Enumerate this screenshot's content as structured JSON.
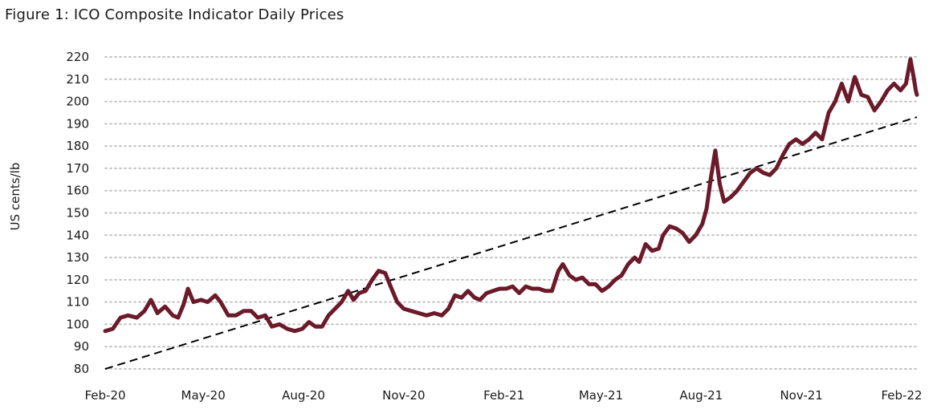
{
  "chart_data": {
    "type": "line",
    "title": "Figure 1: ICO Composite Indicator Daily Prices",
    "xlabel": "",
    "ylabel": "US cents/lb",
    "ylim": [
      80,
      220
    ],
    "y_ticks": [
      220,
      210,
      200,
      190,
      180,
      170,
      160,
      150,
      140,
      130,
      120,
      110,
      100,
      90,
      80
    ],
    "xlim": [
      "2020-02-01",
      "2022-02-15"
    ],
    "x_ticks": [
      {
        "label": "Feb-20",
        "date": "2020-02-01"
      },
      {
        "label": "May-20",
        "date": "2020-05-01"
      },
      {
        "label": "Aug-20",
        "date": "2020-08-01"
      },
      {
        "label": "Nov-20",
        "date": "2020-11-01"
      },
      {
        "label": "Feb-21",
        "date": "2021-02-01"
      },
      {
        "label": "May-21",
        "date": "2021-05-01"
      },
      {
        "label": "Aug-21",
        "date": "2021-08-01"
      },
      {
        "label": "Nov-21",
        "date": "2021-11-01"
      },
      {
        "label": "Feb-22",
        "date": "2022-02-01"
      }
    ],
    "grid": "horizontal-dotted",
    "legend": "none",
    "series": [
      {
        "color": "#6b1a2a",
        "points": [
          [
            "2020-02-01",
            97
          ],
          [
            "2020-02-08",
            98
          ],
          [
            "2020-02-15",
            103
          ],
          [
            "2020-02-22",
            104
          ],
          [
            "2020-03-01",
            103
          ],
          [
            "2020-03-08",
            106
          ],
          [
            "2020-03-14",
            111
          ],
          [
            "2020-03-20",
            105
          ],
          [
            "2020-03-27",
            108
          ],
          [
            "2020-04-03",
            104
          ],
          [
            "2020-04-08",
            103
          ],
          [
            "2020-04-13",
            109
          ],
          [
            "2020-04-17",
            116
          ],
          [
            "2020-04-22",
            110
          ],
          [
            "2020-04-29",
            111
          ],
          [
            "2020-05-05",
            110
          ],
          [
            "2020-05-12",
            113
          ],
          [
            "2020-05-17",
            110
          ],
          [
            "2020-05-24",
            104
          ],
          [
            "2020-05-31",
            104
          ],
          [
            "2020-06-07",
            106
          ],
          [
            "2020-06-14",
            106
          ],
          [
            "2020-06-20",
            103
          ],
          [
            "2020-06-27",
            104
          ],
          [
            "2020-07-03",
            99
          ],
          [
            "2020-07-10",
            100
          ],
          [
            "2020-07-17",
            98
          ],
          [
            "2020-07-24",
            97
          ],
          [
            "2020-07-31",
            98
          ],
          [
            "2020-08-06",
            101
          ],
          [
            "2020-08-12",
            99
          ],
          [
            "2020-08-18",
            99
          ],
          [
            "2020-08-24",
            104
          ],
          [
            "2020-08-30",
            107
          ],
          [
            "2020-09-05",
            110
          ],
          [
            "2020-09-11",
            115
          ],
          [
            "2020-09-16",
            111
          ],
          [
            "2020-09-21",
            114
          ],
          [
            "2020-09-27",
            115
          ],
          [
            "2020-10-03",
            120
          ],
          [
            "2020-10-09",
            124
          ],
          [
            "2020-10-15",
            123
          ],
          [
            "2020-10-20",
            117
          ],
          [
            "2020-10-26",
            110
          ],
          [
            "2020-11-01",
            107
          ],
          [
            "2020-11-08",
            106
          ],
          [
            "2020-11-15",
            105
          ],
          [
            "2020-11-22",
            104
          ],
          [
            "2020-11-29",
            105
          ],
          [
            "2020-12-06",
            104
          ],
          [
            "2020-12-12",
            107
          ],
          [
            "2020-12-18",
            113
          ],
          [
            "2020-12-24",
            112
          ],
          [
            "2020-12-30",
            115
          ],
          [
            "2021-01-05",
            112
          ],
          [
            "2021-01-10",
            111
          ],
          [
            "2021-01-16",
            114
          ],
          [
            "2021-01-22",
            115
          ],
          [
            "2021-01-28",
            116
          ],
          [
            "2021-02-03",
            116
          ],
          [
            "2021-02-09",
            117
          ],
          [
            "2021-02-15",
            114
          ],
          [
            "2021-02-21",
            117
          ],
          [
            "2021-02-27",
            116
          ],
          [
            "2021-03-05",
            116
          ],
          [
            "2021-03-11",
            115
          ],
          [
            "2021-03-17",
            115
          ],
          [
            "2021-03-23",
            124
          ],
          [
            "2021-03-27",
            127
          ],
          [
            "2021-04-02",
            122
          ],
          [
            "2021-04-08",
            120
          ],
          [
            "2021-04-14",
            121
          ],
          [
            "2021-04-20",
            118
          ],
          [
            "2021-04-26",
            118
          ],
          [
            "2021-05-02",
            115
          ],
          [
            "2021-05-08",
            117
          ],
          [
            "2021-05-14",
            120
          ],
          [
            "2021-05-20",
            122
          ],
          [
            "2021-05-26",
            127
          ],
          [
            "2021-06-01",
            130
          ],
          [
            "2021-06-05",
            128
          ],
          [
            "2021-06-11",
            136
          ],
          [
            "2021-06-17",
            133
          ],
          [
            "2021-06-23",
            134
          ],
          [
            "2021-06-27",
            140
          ],
          [
            "2021-07-03",
            144
          ],
          [
            "2021-07-09",
            143
          ],
          [
            "2021-07-15",
            141
          ],
          [
            "2021-07-21",
            137
          ],
          [
            "2021-07-27",
            140
          ],
          [
            "2021-08-02",
            145
          ],
          [
            "2021-08-06",
            152
          ],
          [
            "2021-08-10",
            166
          ],
          [
            "2021-08-14",
            178
          ],
          [
            "2021-08-18",
            163
          ],
          [
            "2021-08-22",
            155
          ],
          [
            "2021-08-28",
            157
          ],
          [
            "2021-09-03",
            160
          ],
          [
            "2021-09-09",
            164
          ],
          [
            "2021-09-15",
            168
          ],
          [
            "2021-09-21",
            170
          ],
          [
            "2021-09-27",
            168
          ],
          [
            "2021-10-03",
            167
          ],
          [
            "2021-10-09",
            170
          ],
          [
            "2021-10-15",
            176
          ],
          [
            "2021-10-21",
            181
          ],
          [
            "2021-10-27",
            183
          ],
          [
            "2021-11-02",
            181
          ],
          [
            "2021-11-08",
            183
          ],
          [
            "2021-11-14",
            186
          ],
          [
            "2021-11-20",
            183
          ],
          [
            "2021-11-26",
            195
          ],
          [
            "2021-12-02",
            200
          ],
          [
            "2021-12-08",
            208
          ],
          [
            "2021-12-14",
            200
          ],
          [
            "2021-12-20",
            211
          ],
          [
            "2021-12-26",
            203
          ],
          [
            "2022-01-01",
            202
          ],
          [
            "2022-01-07",
            196
          ],
          [
            "2022-01-13",
            200
          ],
          [
            "2022-01-19",
            205
          ],
          [
            "2022-01-25",
            208
          ],
          [
            "2022-01-31",
            205
          ],
          [
            "2022-02-05",
            208
          ],
          [
            "2022-02-09",
            219
          ],
          [
            "2022-02-12",
            211
          ],
          [
            "2022-02-14",
            205
          ],
          [
            "2022-02-15",
            203
          ]
        ]
      }
    ],
    "trendline": {
      "style": "dashed",
      "color": "#000000",
      "points": [
        [
          "2020-02-01",
          80
        ],
        [
          "2022-02-15",
          193
        ]
      ]
    }
  }
}
